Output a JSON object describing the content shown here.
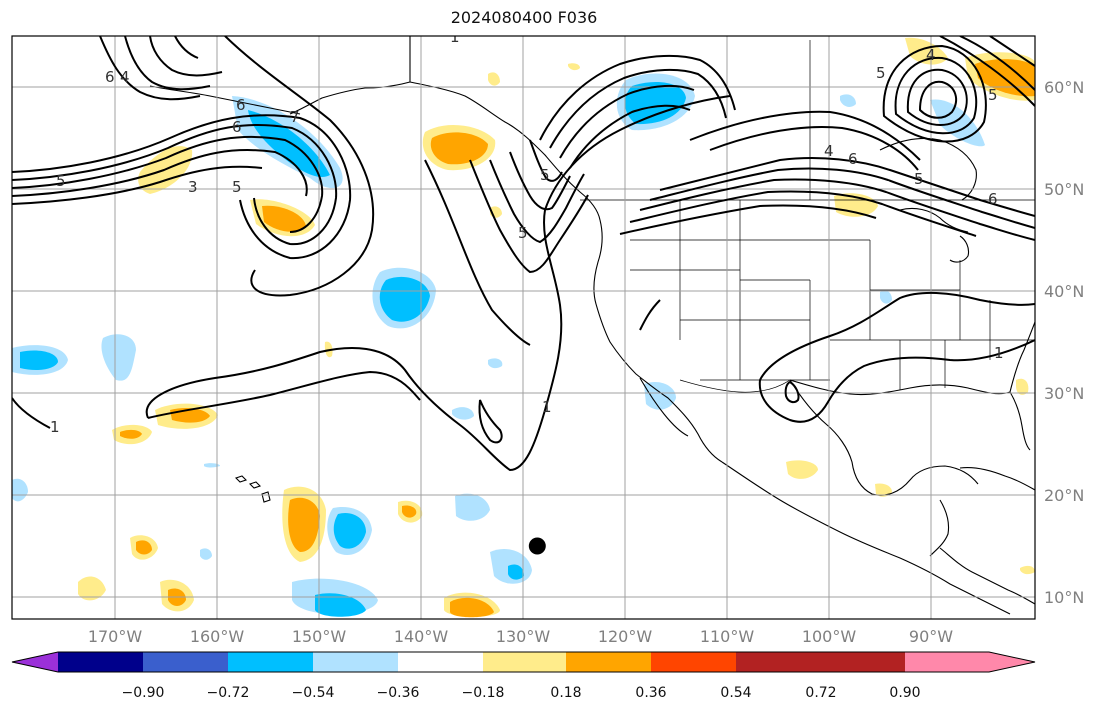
{
  "title": "2024080400 F036",
  "latitude_labels": [
    "60°N",
    "50°N",
    "40°N",
    "30°N",
    "20°N",
    "10°N"
  ],
  "longitude_labels": [
    "170°W",
    "160°W",
    "150°W",
    "140°W",
    "130°W",
    "120°W",
    "110°W",
    "100°W",
    "90°W"
  ],
  "colorbar": {
    "ticks": [
      "−0.90",
      "−0.72",
      "−0.54",
      "−0.36",
      "−0.18",
      "0.18",
      "0.36",
      "0.54",
      "0.72",
      "0.90"
    ],
    "colors": [
      "#9b30d9",
      "#00008b",
      "#3a5fcd",
      "#00bfff",
      "#b0e2ff",
      "#ffffff",
      "#ffec8b",
      "#ffa500",
      "#ff4500",
      "#b22222",
      "#ff88aa"
    ]
  },
  "contour_labels": [
    "6",
    "4",
    "5",
    "3",
    "5",
    "1",
    "7",
    "5",
    "5",
    "4",
    "6",
    "5",
    "4",
    "5",
    "6",
    "5",
    "6",
    "6",
    "1",
    "1",
    "1"
  ],
  "marker": {
    "lon": -128.5,
    "lat": 15
  }
}
